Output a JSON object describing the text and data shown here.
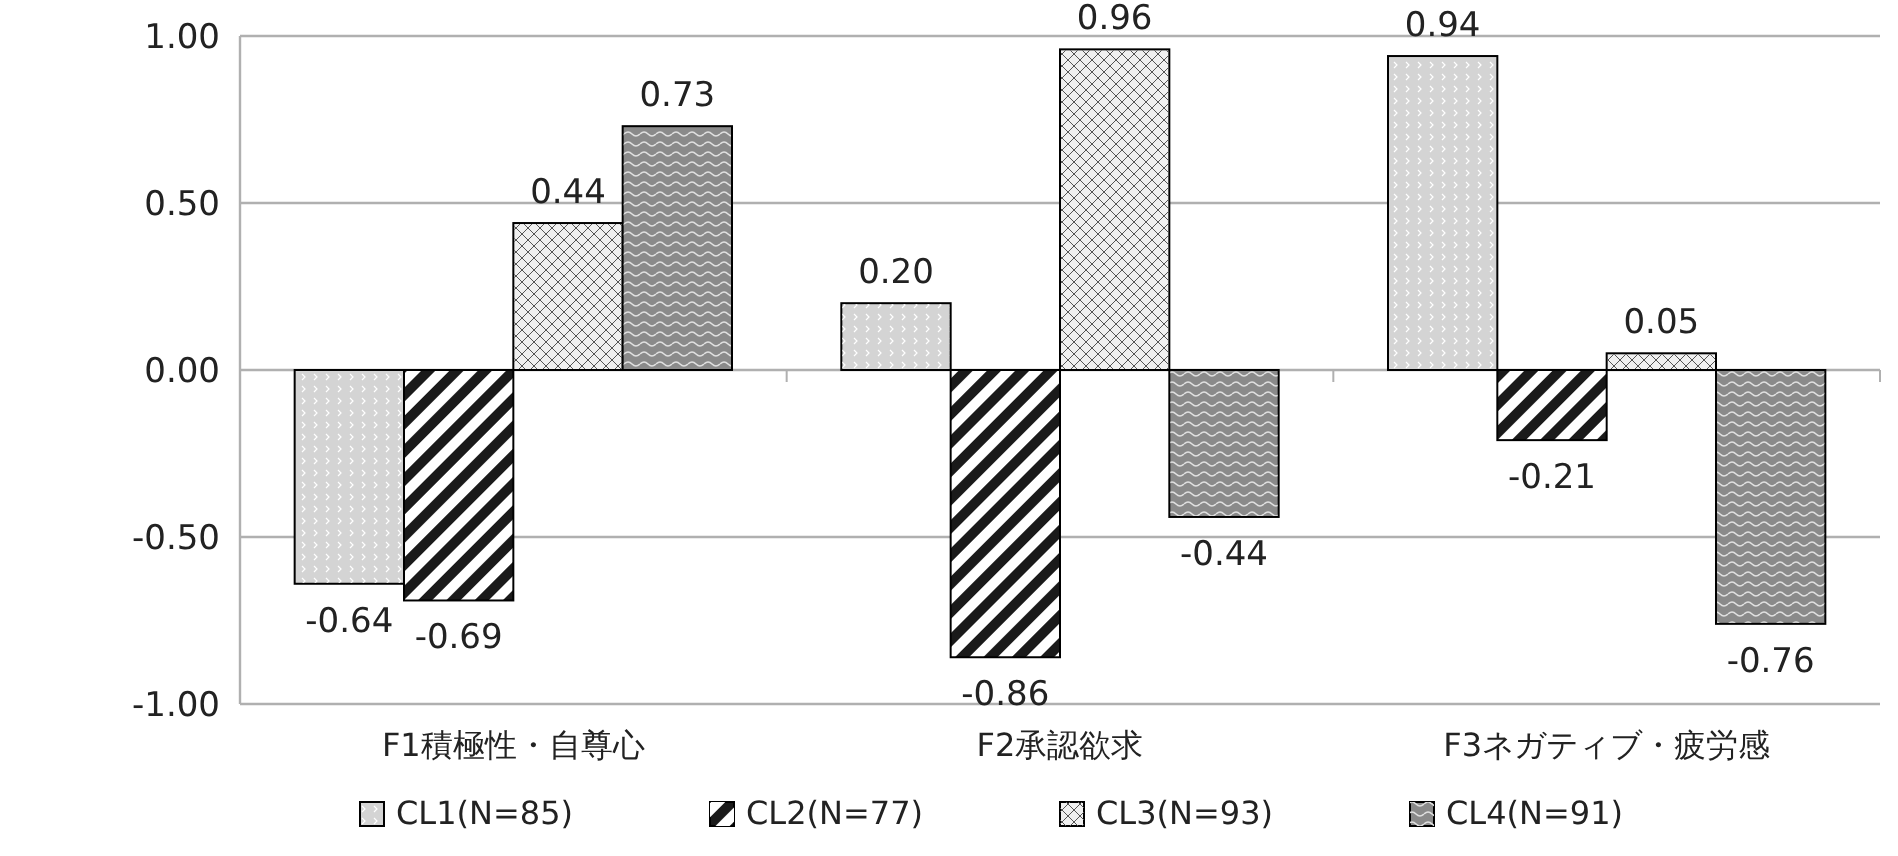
{
  "chart_data": {
    "type": "bar",
    "categories": [
      "F1積極性・自尊心",
      "F2承認欲求",
      "F3ネガティブ・疲労感"
    ],
    "series": [
      {
        "name": "CL1(N=85)",
        "color": "#d4d4d4",
        "values": [
          -0.64,
          0.2,
          0.94
        ],
        "value_labels": [
          "-0.64",
          "0.20",
          "0.94"
        ]
      },
      {
        "name": "CL2(N=77)",
        "color": "#1a1a1a",
        "values": [
          -0.69,
          -0.86,
          -0.21
        ],
        "value_labels": [
          "-0.69",
          "-0.86",
          "-0.21"
        ]
      },
      {
        "name": "CL3(N=93)",
        "color": "#f0f0f0",
        "values": [
          0.44,
          0.96,
          0.05
        ],
        "value_labels": [
          "0.44",
          "0.96",
          "0.05"
        ]
      },
      {
        "name": "CL4(N=91)",
        "color": "#8a8a8a",
        "values": [
          0.73,
          -0.44,
          -0.76
        ],
        "value_labels": [
          "0.73",
          "-0.44",
          "-0.76"
        ]
      }
    ],
    "ylim": [
      -1,
      1
    ],
    "yticks": [
      {
        "value": -1,
        "label": "-1.00"
      },
      {
        "value": -0.5,
        "label": "-0.50"
      },
      {
        "value": 0,
        "label": "0.00"
      },
      {
        "value": 0.5,
        "label": "0.50"
      },
      {
        "value": 1,
        "label": "1.00"
      }
    ],
    "grid": "y",
    "legend": "bottom"
  }
}
